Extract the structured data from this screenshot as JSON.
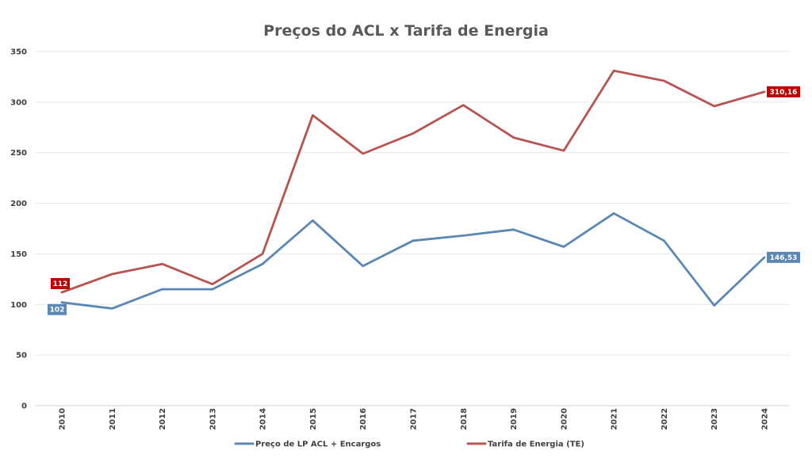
{
  "chart_data": {
    "type": "line",
    "title": "Preços do ACL x Tarifa de Energia",
    "xlabel": "",
    "ylabel": "",
    "x": [
      "2010",
      "2011",
      "2012",
      "2013",
      "2014",
      "2015",
      "2016",
      "2017",
      "2018",
      "2019",
      "2020",
      "2021",
      "2022",
      "2023",
      "2024"
    ],
    "ylim": [
      0,
      350
    ],
    "yticks": [
      "0",
      "50",
      "100",
      "150",
      "200",
      "250",
      "300",
      "350"
    ],
    "grid": true,
    "legend_position": "bottom",
    "series": [
      {
        "name": "Preço de LP ACL + Encargos",
        "color": "#5B87B5",
        "values": [
          102,
          96,
          115,
          115,
          140,
          183,
          138,
          163,
          168,
          174,
          157,
          190,
          163,
          99,
          146.53
        ],
        "labels": [
          {
            "index": 0,
            "text": "102"
          },
          {
            "index": 14,
            "text": "146,53"
          }
        ]
      },
      {
        "name": "Tarifa de Energia (TE)",
        "color": "#B85450",
        "label_color": "#C00000",
        "values": [
          112,
          130,
          140,
          120,
          150,
          287,
          249,
          269,
          297,
          265,
          252,
          331,
          321,
          296,
          310.16
        ],
        "labels": [
          {
            "index": 0,
            "text": "112"
          },
          {
            "index": 14,
            "text": "310,16"
          }
        ]
      }
    ]
  }
}
